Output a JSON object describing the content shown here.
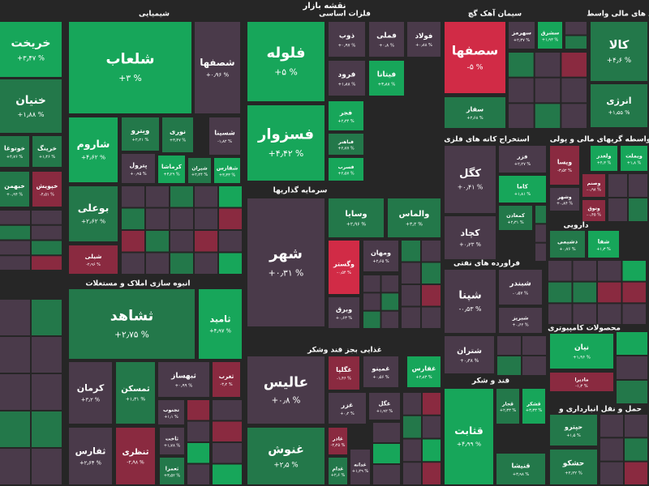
{
  "header": {
    "title": "نقشه بازار"
  },
  "sectors": [
    {
      "title": "شیمیایی",
      "tiles": [
        {
          "name": "شلعاب",
          "change": "+۳ %"
        },
        {
          "name": "خریخت",
          "change": "+۳٫۴۷ %"
        },
        {
          "name": "شصفها",
          "change": "+۰٫۹۶ %"
        },
        {
          "name": "خنیان",
          "change": "+۱٫۸۸ %"
        },
        {
          "name": "شاروم",
          "change": "+۴٫۶۲ %"
        },
        {
          "name": "نوری",
          "change": "+۳٫۴۷ %"
        },
        {
          "name": "شسینا",
          "change": "-۱٫۸۲ %"
        },
        {
          "name": "ویترو",
          "change": "+۲٫۲۱ %"
        },
        {
          "name": "پترول",
          "change": "+۰٫۹۵ %"
        },
        {
          "name": "کرماشا",
          "change": "+۳٫۲۹ %"
        },
        {
          "name": "شیران",
          "change": "+۲٫۲۴ %"
        },
        {
          "name": "شفارس",
          "change": "+۳٫۳۳ %"
        },
        {
          "name": "بوعلی",
          "change": "+۲٫۶۲ %"
        },
        {
          "name": "شیلی",
          "change": "-۲٫۹۶ %"
        },
        {
          "name": "خوتوغا",
          "change": "+۴٫۷۶ %"
        },
        {
          "name": "خرینگ",
          "change": "+۱٫۴۶ %"
        },
        {
          "name": "خبهمن",
          "change": "+۰٫۹۴ %"
        },
        {
          "name": "خپویش",
          "change": "-۴٫۵۱ %"
        }
      ]
    },
    {
      "title": "فلزات اساسی",
      "tiles": [
        {
          "name": "فلوله",
          "change": "+۵ %"
        },
        {
          "name": "فسزوار",
          "change": "+۴٫۴۲ %"
        },
        {
          "name": "ذوب",
          "change": "+۰٫۹۷ %"
        },
        {
          "name": "فملی",
          "change": "+۰٫۸ %"
        },
        {
          "name": "فولاد",
          "change": "+۰٫۸۸ %"
        },
        {
          "name": "فرود",
          "change": "+۱٫۸۸ %"
        },
        {
          "name": "فیتانا",
          "change": "+۳٫۸۸ %"
        },
        {
          "name": "فجر",
          "change": "+۲٫۳۴ %"
        },
        {
          "name": "فباهنر",
          "change": "+۲٫۷۷ %"
        },
        {
          "name": "فسرب",
          "change": "+۲٫۵۷ %"
        }
      ]
    },
    {
      "title": "سیمان آهک گچ",
      "tiles": [
        {
          "name": "سصفها",
          "change": "-۵ %"
        },
        {
          "name": "سفار",
          "change": "+۲٫۶۸ %"
        },
        {
          "name": "سهرمز",
          "change": "+۲٫۳۷ %"
        },
        {
          "name": "سشرق",
          "change": "+۱٫۹۳ %"
        }
      ]
    },
    {
      "title": "اد های مالی واسط",
      "tiles": [
        {
          "name": "کالا",
          "change": "+۴٫۶ %"
        },
        {
          "name": "انرژی",
          "change": "+۱٫۵۵ %"
        }
      ]
    },
    {
      "title": "انبوه سازی املاک و مستغلات",
      "tiles": [
        {
          "name": "ثشاهد",
          "change": "+۲٫۷۵ %"
        },
        {
          "name": "ثامید",
          "change": "+۴٫۹۷ %"
        },
        {
          "name": "کرمان",
          "change": "+۳٫۲ %"
        },
        {
          "name": "ثمسکن",
          "change": "+۱٫۳۱ %"
        },
        {
          "name": "ثبهساز",
          "change": "+۰٫۹۹ %"
        },
        {
          "name": "ثغرب",
          "change": "-۳٫۲ %"
        },
        {
          "name": "تجنوب",
          "change": "+۱٫۱ %"
        },
        {
          "name": "ثنظری",
          "change": "-۲٫۹۸ %"
        },
        {
          "name": "ثاخت",
          "change": "+۱٫۷۸ %"
        },
        {
          "name": "ثعمرا",
          "change": "+۳٫۵۲ %"
        },
        {
          "name": "ثفارس",
          "change": "+۲٫۶۴ %"
        }
      ]
    },
    {
      "title": "سرمایه گذاریها",
      "tiles": [
        {
          "name": "شهر",
          "change": "+۰٫۳۱ %"
        },
        {
          "name": "وسایا",
          "change": "+۲٫۹۶ %"
        },
        {
          "name": "والماس",
          "change": "+۳٫۲ %"
        },
        {
          "name": "وگستر",
          "change": "-۰٫۵۴ %"
        },
        {
          "name": "ومهان",
          "change": "+۲٫۶۵ %"
        },
        {
          "name": "وبرق",
          "change": "+۰٫۶۳ %"
        }
      ]
    },
    {
      "title": "غذایی بجز قند وشکر",
      "tiles": [
        {
          "name": "عالیس",
          "change": "+۰٫۸ %"
        },
        {
          "name": "غنوش",
          "change": "+۲٫۵ %"
        },
        {
          "name": "غگلپا",
          "change": "-۱٫۴۶ %"
        },
        {
          "name": "غمینو",
          "change": "+۰٫۵۶ %"
        },
        {
          "name": "غفارس",
          "change": "+۲٫۸۳ %"
        },
        {
          "name": "غزر",
          "change": "+۰٫۲ %"
        },
        {
          "name": "غگل",
          "change": "+۱٫۹۲ %"
        },
        {
          "name": "غاذر",
          "change": "-۲٫۲۵ %"
        },
        {
          "name": "غدام",
          "change": "+۲٫۶ %"
        },
        {
          "name": "غدانه",
          "change": "+۱٫۲۹ %"
        }
      ]
    },
    {
      "title": "استخراج کانه های فلزی",
      "tiles": [
        {
          "name": "کگل",
          "change": "+۰٫۴۱ %"
        },
        {
          "name": "کچاد",
          "change": "+۰٫۲۳ %"
        },
        {
          "name": "فزر",
          "change": "+۲٫۲۷ %"
        },
        {
          "name": "کاما",
          "change": "+۱٫۸۱ %"
        },
        {
          "name": "کمعادن",
          "change": "+۲٫۳۱ %"
        }
      ]
    },
    {
      "title": "فراورده های نفتی",
      "tiles": [
        {
          "name": "شپنا",
          "change": "-۰٫۵۳ %"
        },
        {
          "name": "شتران",
          "change": "+۰٫۳۸ %"
        },
        {
          "name": "شبندر",
          "change": "-۰٫۵۷ %"
        },
        {
          "name": "شبریز",
          "change": "+۰٫۶۲ %"
        }
      ]
    },
    {
      "title": "قند و شکر",
      "tiles": [
        {
          "name": "قثابت",
          "change": "+۴٫۹۹ %"
        },
        {
          "name": "قجار",
          "change": "+۲٫۳۳ %"
        },
        {
          "name": "قشکر",
          "change": "+۳٫۳۳ %"
        },
        {
          "name": "قنیشا",
          "change": "+۳٫۹۸ %"
        }
      ]
    },
    {
      "title": "واسطه گریهای مالی و پولی",
      "tiles": [
        {
          "name": "وبملت",
          "change": "+۱٫۸ %"
        },
        {
          "name": "ولغدر",
          "change": "+۴٫۳ %"
        },
        {
          "name": "ویسا",
          "change": "-۳٫۵۲ %"
        },
        {
          "name": "وصنم",
          "change": "-۰٫۹۸ %"
        },
        {
          "name": "وشهر",
          "change": "+۰٫۸۴ %"
        },
        {
          "name": "وتوق",
          "change": "-۰٫۴۵ %"
        }
      ]
    },
    {
      "title": "دارویی",
      "tiles": [
        {
          "name": "دشیمی",
          "change": "+۰٫۷۶ %"
        },
        {
          "name": "شفا",
          "change": "+۱٫۳ %"
        }
      ]
    },
    {
      "title": "محصولات کامپیوتری",
      "tiles": [
        {
          "name": "نیان",
          "change": "+۱٫۹۶ %"
        },
        {
          "name": "مادیرا",
          "change": "-۱٫۳ %"
        }
      ]
    },
    {
      "title": "حمل و نقل انبارداری و",
      "tiles": [
        {
          "name": "حپترو",
          "change": "+۱٫۵ %"
        },
        {
          "name": "حشکو",
          "change": "+۲٫۲۲ %"
        }
      ]
    }
  ]
}
